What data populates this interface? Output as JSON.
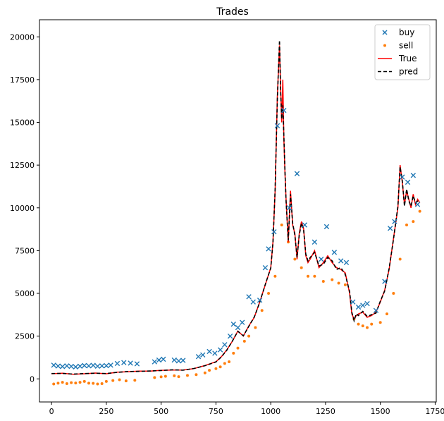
{
  "chart_data": {
    "type": "line",
    "title": "Trades",
    "xlabel": "",
    "ylabel": "",
    "xlim": [
      -55,
      1755
    ],
    "ylim": [
      -1350,
      21000
    ],
    "xticks": [
      0,
      250,
      500,
      750,
      1000,
      1250,
      1500,
      1750
    ],
    "yticks": [
      0,
      2500,
      5000,
      7500,
      10000,
      12500,
      15000,
      17500,
      20000
    ],
    "xtick_labels": [
      "0",
      "250",
      "500",
      "750",
      "1000",
      "1250",
      "1500",
      "1750"
    ],
    "ytick_labels": [
      "0",
      "2500",
      "5000",
      "7500",
      "10000",
      "12500",
      "15000",
      "17500",
      "20000"
    ],
    "grid": false,
    "legend_position": "top-right",
    "legend": [
      "buy",
      "sell",
      "True",
      "pred"
    ],
    "colors": {
      "buy": "#1f77b4",
      "sell": "#ff7f0e",
      "true": "#ff0000",
      "pred": "#000000"
    },
    "series": [
      {
        "name": "True",
        "style": "line",
        "x": [
          0,
          50,
          100,
          150,
          200,
          250,
          300,
          350,
          400,
          450,
          500,
          550,
          600,
          650,
          700,
          750,
          775,
          800,
          825,
          850,
          875,
          900,
          925,
          950,
          975,
          1000,
          1010,
          1020,
          1030,
          1040,
          1045,
          1050,
          1055,
          1060,
          1065,
          1070,
          1080,
          1090,
          1100,
          1110,
          1120,
          1130,
          1140,
          1150,
          1160,
          1170,
          1180,
          1200,
          1220,
          1240,
          1260,
          1280,
          1300,
          1320,
          1340,
          1360,
          1370,
          1380,
          1390,
          1400,
          1420,
          1440,
          1460,
          1480,
          1500,
          1520,
          1540,
          1560,
          1580,
          1590,
          1600,
          1610,
          1620,
          1630,
          1640,
          1650,
          1660,
          1670,
          1680
        ],
        "values": [
          300,
          330,
          270,
          300,
          340,
          300,
          390,
          420,
          450,
          450,
          500,
          520,
          520,
          600,
          780,
          1000,
          1300,
          1700,
          2200,
          2800,
          2500,
          3100,
          3600,
          4500,
          5500,
          6500,
          8000,
          11000,
          16500,
          19500,
          17000,
          15000,
          17500,
          14000,
          12000,
          10500,
          8000,
          11000,
          9000,
          8500,
          7000,
          8500,
          9200,
          8800,
          7200,
          6800,
          7000,
          7500,
          6500,
          6800,
          7200,
          6800,
          6500,
          6400,
          6200,
          5000,
          3800,
          3500,
          3700,
          3800,
          3900,
          3600,
          3700,
          3900,
          4500,
          5200,
          6400,
          8200,
          10000,
          12500,
          11500,
          10200,
          11000,
          10500,
          10000,
          10800,
          10200,
          10500,
          10300
        ]
      },
      {
        "name": "pred",
        "style": "dashed",
        "x": [
          0,
          50,
          100,
          150,
          200,
          250,
          300,
          350,
          400,
          450,
          500,
          550,
          600,
          650,
          700,
          750,
          775,
          800,
          825,
          850,
          875,
          900,
          925,
          950,
          975,
          1000,
          1010,
          1020,
          1030,
          1040,
          1045,
          1050,
          1055,
          1060,
          1065,
          1070,
          1080,
          1090,
          1100,
          1110,
          1120,
          1130,
          1140,
          1150,
          1160,
          1170,
          1180,
          1200,
          1220,
          1240,
          1260,
          1280,
          1300,
          1320,
          1340,
          1360,
          1370,
          1380,
          1390,
          1400,
          1420,
          1440,
          1460,
          1480,
          1500,
          1520,
          1540,
          1560,
          1580,
          1590,
          1600,
          1610,
          1620,
          1630,
          1640,
          1650,
          1660,
          1670,
          1680
        ],
        "values": [
          310,
          320,
          280,
          310,
          330,
          310,
          380,
          430,
          440,
          460,
          490,
          530,
          510,
          610,
          770,
          990,
          1290,
          1680,
          2210,
          2780,
          2520,
          3080,
          3620,
          4480,
          5520,
          6480,
          7950,
          11100,
          16300,
          19800,
          16800,
          15200,
          16000,
          14200,
          12100,
          10400,
          8100,
          10800,
          9100,
          8400,
          7100,
          8400,
          9100,
          8700,
          7300,
          6900,
          7100,
          7400,
          6600,
          6700,
          7100,
          6900,
          6400,
          6500,
          6100,
          5100,
          3900,
          3400,
          3800,
          3700,
          3950,
          3650,
          3750,
          3850,
          4550,
          5150,
          6450,
          8150,
          10100,
          12400,
          11600,
          10100,
          11100,
          10400,
          10100,
          10700,
          10300,
          10400,
          10350
        ]
      },
      {
        "name": "buy",
        "style": "marker-x",
        "x": [
          10,
          30,
          50,
          70,
          90,
          110,
          130,
          150,
          170,
          190,
          210,
          230,
          250,
          270,
          300,
          330,
          360,
          390,
          470,
          490,
          510,
          560,
          580,
          600,
          670,
          690,
          720,
          745,
          770,
          790,
          815,
          830,
          850,
          870,
          900,
          920,
          950,
          975,
          990,
          1015,
          1030,
          1060,
          1085,
          1120,
          1155,
          1200,
          1230,
          1255,
          1290,
          1320,
          1345,
          1375,
          1400,
          1420,
          1440,
          1480,
          1520,
          1545,
          1565,
          1600,
          1625,
          1650,
          1670
        ],
        "values": [
          800,
          750,
          720,
          760,
          730,
          700,
          740,
          780,
          760,
          790,
          740,
          760,
          770,
          800,
          900,
          950,
          920,
          880,
          1000,
          1100,
          1150,
          1100,
          1050,
          1080,
          1300,
          1400,
          1600,
          1500,
          1700,
          2000,
          2500,
          3200,
          3000,
          3300,
          4800,
          4500,
          4600,
          6500,
          7600,
          8600,
          14800,
          15700,
          10000,
          12000,
          9000,
          8000,
          7000,
          8900,
          7400,
          6900,
          6800,
          4500,
          4200,
          4300,
          4400,
          4000,
          5700,
          8800,
          9200,
          11800,
          11500,
          11900,
          10200
        ]
      },
      {
        "name": "sell",
        "style": "marker-dot",
        "x": [
          10,
          30,
          50,
          70,
          90,
          110,
          130,
          150,
          170,
          190,
          210,
          230,
          250,
          280,
          310,
          340,
          380,
          470,
          500,
          520,
          560,
          580,
          620,
          660,
          700,
          720,
          750,
          770,
          790,
          810,
          830,
          850,
          880,
          900,
          930,
          960,
          990,
          1020,
          1050,
          1080,
          1110,
          1140,
          1170,
          1200,
          1240,
          1280,
          1310,
          1340,
          1380,
          1400,
          1420,
          1440,
          1460,
          1500,
          1530,
          1560,
          1590,
          1620,
          1650,
          1680
        ],
        "values": [
          -300,
          -250,
          -200,
          -280,
          -220,
          -240,
          -200,
          -150,
          -250,
          -260,
          -300,
          -280,
          -150,
          -100,
          -50,
          -120,
          -80,
          80,
          120,
          150,
          180,
          130,
          200,
          250,
          350,
          500,
          600,
          700,
          900,
          1000,
          1500,
          1800,
          2200,
          2500,
          3000,
          4000,
          5000,
          6000,
          9000,
          8000,
          7000,
          6500,
          6000,
          6000,
          5700,
          5800,
          5600,
          5500,
          3500,
          3200,
          3100,
          3000,
          3200,
          3300,
          3800,
          5000,
          7000,
          9000,
          9200,
          9800
        ]
      }
    ]
  }
}
